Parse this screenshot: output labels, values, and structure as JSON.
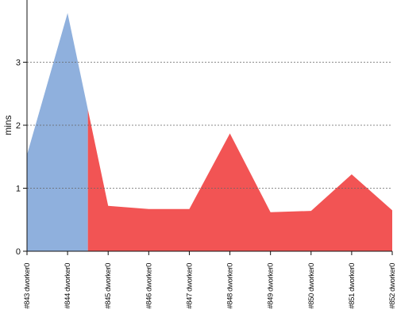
{
  "chart_data": {
    "type": "area",
    "ylabel": "mins",
    "xlabel": "",
    "title": "",
    "ylim": [
      0,
      4
    ],
    "yticks": [
      0,
      1,
      2,
      3
    ],
    "grid": true,
    "categories": [
      "#843 dworker0",
      "#844 dworker0",
      "#845 dworker0",
      "#846 dworker0",
      "#847 dworker0",
      "#848 dworker0",
      "#849 dworker0",
      "#850 dworker0",
      "#851 dworker0",
      "#852 dworker0"
    ],
    "values": [
      1.53,
      3.78,
      0.72,
      0.67,
      0.67,
      1.87,
      0.62,
      0.64,
      1.22,
      0.65
    ],
    "segments": [
      {
        "from": 0,
        "to": 1.5,
        "color": "#8fb0dd",
        "status": "passed"
      },
      {
        "from": 1.5,
        "to": 9,
        "color": "#f25454",
        "status": "failed"
      }
    ],
    "colors": {
      "grid": "#666666",
      "axis": "#111111"
    }
  }
}
